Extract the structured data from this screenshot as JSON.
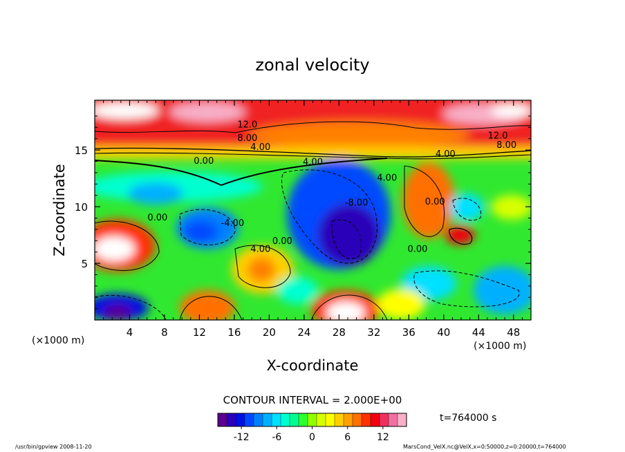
{
  "chart_data": {
    "type": "heatmap",
    "title": "zonal velocity",
    "xlabel": "X-coordinate",
    "ylabel": "Z-coordinate",
    "x_unit": "(×1000 m)",
    "z_unit": "(×1000 m)",
    "xlim": [
      0,
      50
    ],
    "ylim": [
      0,
      19.4
    ],
    "x_ticks": [
      4,
      8,
      12,
      16,
      20,
      24,
      28,
      32,
      36,
      40,
      44,
      48
    ],
    "y_ticks": [
      5,
      10,
      15
    ],
    "contour_interval_text": "CONTOUR INTERVAL = 2.000E+00",
    "time_text": "t=764000 s",
    "colorbar": {
      "min": -16,
      "max": 16,
      "ticks": [
        -12,
        -6,
        0,
        6,
        12
      ],
      "colors": [
        "#5a0090",
        "#2a00b8",
        "#0010e0",
        "#0048ff",
        "#0080ff",
        "#00b0ff",
        "#00e0ff",
        "#00ffd0",
        "#00ff90",
        "#30ff30",
        "#90ff00",
        "#d8ff00",
        "#ffff00",
        "#ffd000",
        "#ffa000",
        "#ff7000",
        "#ff3000",
        "#f00010",
        "#f03060",
        "#f070a0",
        "#f8b0c8"
      ]
    },
    "contour_labels": [
      {
        "text": "12.0",
        "x": 17.5,
        "z": 17.0
      },
      {
        "text": "12.0",
        "x": 46.2,
        "z": 16.0
      },
      {
        "text": "8.00",
        "x": 17.5,
        "z": 15.8
      },
      {
        "text": "8.00",
        "x": 47.2,
        "z": 15.2
      },
      {
        "text": "4.00",
        "x": 19.0,
        "z": 15.0
      },
      {
        "text": "4.00",
        "x": 40.2,
        "z": 14.4
      },
      {
        "text": "0.00",
        "x": 12.5,
        "z": 13.8
      },
      {
        "text": "4.00",
        "x": 25.0,
        "z": 13.7
      },
      {
        "text": "4.00",
        "x": 33.5,
        "z": 12.3
      },
      {
        "text": "0.00",
        "x": 7.2,
        "z": 8.8
      },
      {
        "text": "-4.00",
        "x": 15.8,
        "z": 8.3
      },
      {
        "text": "-8.00",
        "x": 30.0,
        "z": 10.1
      },
      {
        "text": "0.00",
        "x": 39.0,
        "z": 10.2
      },
      {
        "text": "0.00",
        "x": 21.5,
        "z": 6.7
      },
      {
        "text": "4.00",
        "x": 19.0,
        "z": 6.0
      },
      {
        "text": "0.00",
        "x": 37.0,
        "z": 6.0
      }
    ]
  },
  "footer": {
    "left": "/usr/bin/gpview   2008-11-20",
    "right": "MarsCond_VelX.nc@VelX,x=0:50000,z=0:20000,t=764000"
  }
}
